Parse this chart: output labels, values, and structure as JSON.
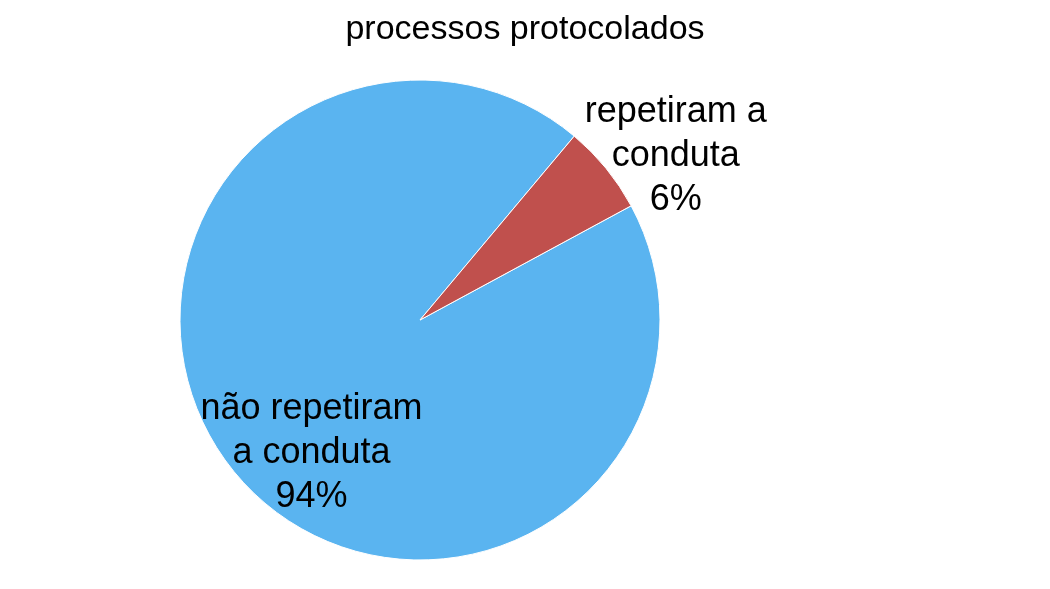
{
  "chart_data": {
    "type": "pie",
    "title": "processos protocolados",
    "categories": [
      "não repetiram a conduta",
      "repetiram a conduta"
    ],
    "values": [
      94,
      6
    ],
    "value_labels": [
      "94%",
      "6%"
    ],
    "colors": [
      "#5ab4f0",
      "#c0504d"
    ]
  }
}
